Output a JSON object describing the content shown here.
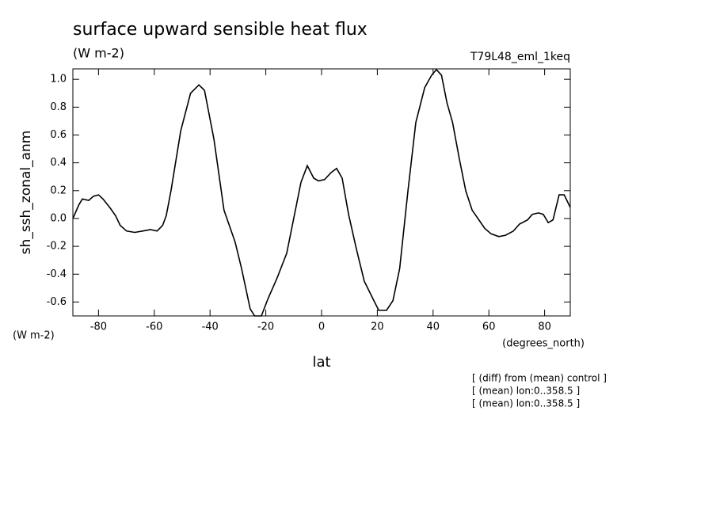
{
  "chart_data": {
    "type": "line",
    "title": "surface upward sensible heat flux",
    "subtitle": "(W m-2)",
    "dataset_label": "T79L48_eml_1keq",
    "y_label": "sh_ssh_zonal_anm",
    "y_units": "(W m-2)",
    "x_units": "(degrees_north)",
    "x_label": "lat",
    "notes": [
      "[ (diff) from (mean) control ]",
      "[ (mean) lon:0..358.5 ]",
      "[ (mean) lon:0..358.5 ]"
    ],
    "x": [
      -89.2,
      -87,
      -85.8,
      -83.5,
      -81.8,
      -80,
      -78.4,
      -76,
      -73.9,
      -72.2,
      -69.9,
      -67,
      -64.2,
      -61.4,
      -59,
      -57,
      -55.7,
      -54,
      -50.5,
      -47,
      -44,
      -42,
      -38.6,
      -35,
      -31,
      -28.7,
      -25.6,
      -24,
      -21.6,
      -19.3,
      -16,
      -12.5,
      -10.2,
      -7.4,
      -5.1,
      -2.8,
      -1.1,
      1.1,
      3.4,
      5.4,
      7.4,
      9.7,
      12.5,
      15.3,
      18,
      20.5,
      23.3,
      25.6,
      28,
      31,
      33.8,
      37,
      39.5,
      41.2,
      43,
      45,
      47,
      49.4,
      51.7,
      54,
      56.8,
      58.5,
      60.8,
      63.6,
      66,
      68.8,
      71,
      73.9,
      75.6,
      77.8,
      79.5,
      81.3,
      83,
      85.2,
      87,
      89.2
    ],
    "series": [
      {
        "name": "sh_ssh_zonal_anm",
        "color": "#000000",
        "values": [
          0.0,
          0.1,
          0.14,
          0.13,
          0.16,
          0.17,
          0.14,
          0.08,
          0.02,
          -0.05,
          -0.09,
          -0.1,
          -0.09,
          -0.08,
          -0.09,
          -0.05,
          0.02,
          0.2,
          0.63,
          0.9,
          0.96,
          0.92,
          0.57,
          0.06,
          -0.17,
          -0.36,
          -0.65,
          -0.7,
          -0.7,
          -0.58,
          -0.43,
          -0.25,
          -0.02,
          0.26,
          0.38,
          0.29,
          0.27,
          0.28,
          0.33,
          0.36,
          0.29,
          0.03,
          -0.22,
          -0.45,
          -0.56,
          -0.66,
          -0.66,
          -0.59,
          -0.36,
          0.2,
          0.69,
          0.94,
          1.03,
          1.07,
          1.03,
          0.83,
          0.69,
          0.43,
          0.2,
          0.06,
          -0.02,
          -0.07,
          -0.11,
          -0.13,
          -0.12,
          -0.09,
          -0.04,
          -0.01,
          0.03,
          0.04,
          0.03,
          -0.03,
          -0.01,
          0.17,
          0.17,
          0.08
        ]
      }
    ],
    "xlim": [
      -89.2,
      89.2
    ],
    "ylim": [
      -0.7,
      1.075
    ],
    "xticks": [
      -80,
      -60,
      -40,
      -20,
      0,
      20,
      40,
      60,
      80
    ],
    "yticks": [
      -0.6,
      -0.4,
      -0.2,
      {
        "value": 0,
        "label": "0.0"
      },
      0.2,
      0.4,
      0.6,
      0.8,
      {
        "value": 1,
        "label": "1.0"
      }
    ]
  }
}
